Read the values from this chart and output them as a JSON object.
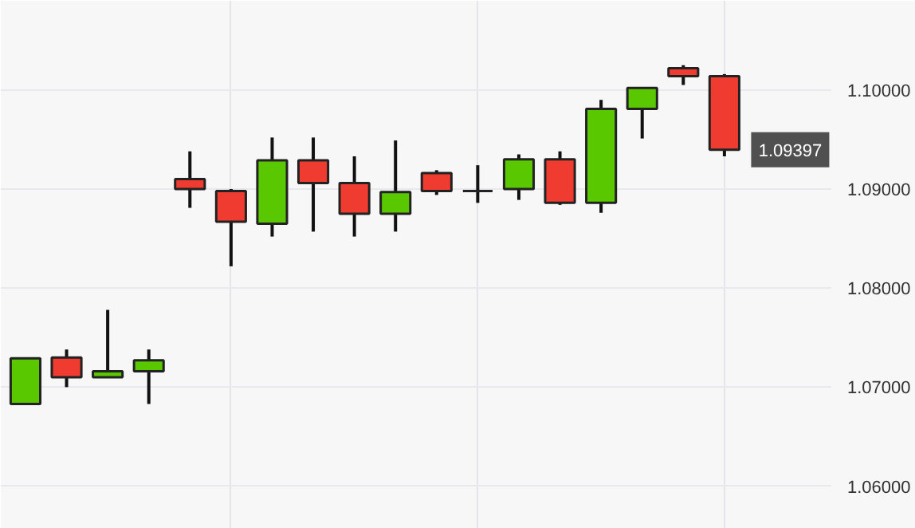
{
  "chart_data": {
    "type": "candlestick",
    "categories": [
      null,
      null,
      null,
      null,
      null,
      null,
      null,
      null,
      null,
      null,
      null,
      null,
      null,
      null,
      null,
      null,
      null,
      null
    ],
    "ohlc": [
      [
        1.0683,
        1.0729,
        1.0683,
        1.0729
      ],
      [
        1.073,
        1.0738,
        1.07,
        1.071
      ],
      [
        1.071,
        1.0778,
        1.071,
        1.0716
      ],
      [
        1.0716,
        1.0738,
        1.0683,
        1.0727
      ],
      [
        1.091,
        1.0938,
        1.0881,
        1.09
      ],
      [
        1.0898,
        1.09,
        1.0822,
        1.0867
      ],
      [
        1.0865,
        1.0952,
        1.0852,
        1.0929
      ],
      [
        1.0929,
        1.0952,
        1.0857,
        1.0906
      ],
      [
        1.0906,
        1.0933,
        1.0852,
        1.0875
      ],
      [
        1.0875,
        1.0949,
        1.0857,
        1.0897
      ],
      [
        1.0916,
        1.0919,
        1.0894,
        1.0898
      ],
      [
        1.0898,
        1.0924,
        1.0886,
        1.0898
      ],
      [
        1.09,
        1.0935,
        1.0889,
        1.093
      ],
      [
        1.093,
        1.0938,
        1.0884,
        1.0886
      ],
      [
        1.0886,
        1.099,
        1.0876,
        1.0981
      ],
      [
        1.0981,
        1.1002,
        1.0951,
        1.1002
      ],
      [
        1.1022,
        1.1025,
        1.1005,
        1.1014
      ],
      [
        1.1014,
        1.1016,
        1.0933,
        1.09397
      ]
    ],
    "colors": [
      "#5ac800",
      "#f03c30",
      "#5ac800",
      "#5ac800",
      "#f03c30",
      "#f03c30",
      "#5ac800",
      "#f03c30",
      "#f03c30",
      "#5ac800",
      "#f03c30",
      "#222222",
      "#5ac800",
      "#f03c30",
      "#5ac800",
      "#5ac800",
      "#f03c30",
      "#f03c30"
    ],
    "ylim": [
      1.0557,
      1.109
    ],
    "yticks": [
      {
        "value": 1.06,
        "label": "1.06000"
      },
      {
        "value": 1.07,
        "label": "1.07000"
      },
      {
        "value": 1.08,
        "label": "1.08000"
      },
      {
        "value": 1.09,
        "label": "1.09000"
      },
      {
        "value": 1.1,
        "label": "1.10000"
      }
    ],
    "grid": true,
    "annotations": [
      "1.09397"
    ]
  }
}
